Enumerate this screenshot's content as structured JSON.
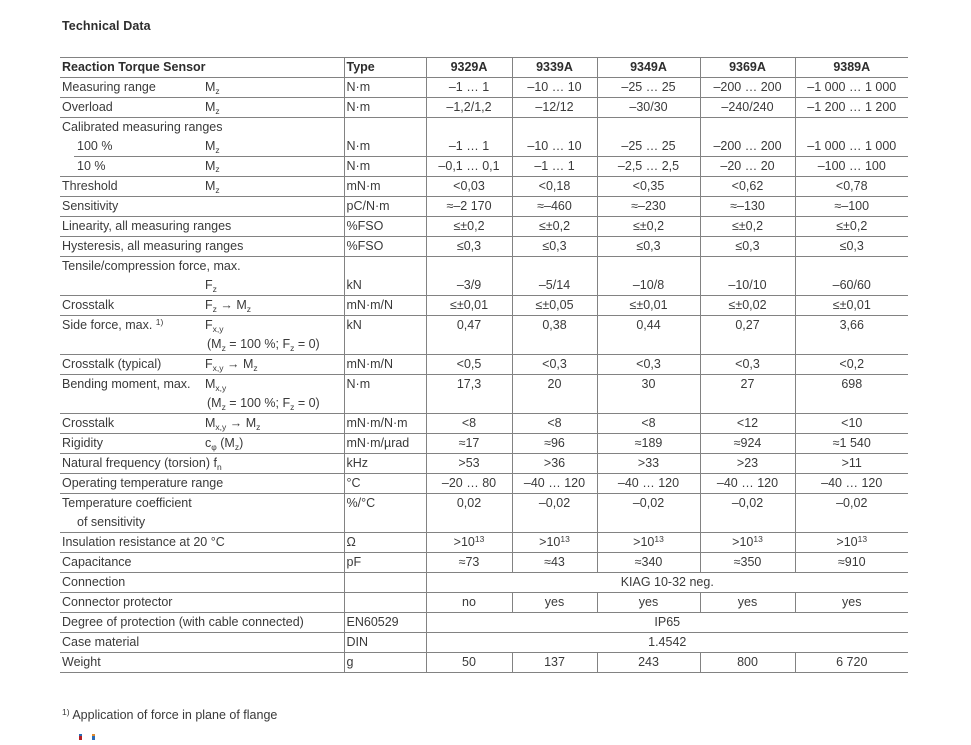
{
  "page": {
    "title": "Technical Data",
    "footnote": "^{1)} Application of force in plane of flange"
  },
  "colors": {
    "text": "#3a3a3a",
    "table_border": "#828282",
    "logo_fragment_red": "#b32025",
    "logo_fragment_blue": "#2b6bb3"
  },
  "table": {
    "header": {
      "label": "Reaction Torque Sensor",
      "type": "Type",
      "models": [
        "9329A",
        "9339A",
        "9349A",
        "9369A",
        "9389A"
      ]
    },
    "rows": [
      {
        "label": "Measuring range",
        "symbol": "M_{z}",
        "type": "N·m",
        "values": [
          "–1 … 1",
          "–10 … 10",
          "–25 … 25",
          "–200 … 200",
          "–1 000 … 1 000"
        ]
      },
      {
        "label": "Overload",
        "symbol": "M_{z}",
        "type": "N·m",
        "values": [
          "–1,2/1,2",
          "–12/12",
          "–30/30",
          "–240/240",
          "–1 200 … 1 200"
        ]
      },
      {
        "label": "Calibrated measuring ranges",
        "group": true
      },
      {
        "label": "100 %",
        "indent": true,
        "symbol": "M_{z}",
        "type": "N·m",
        "values": [
          "–1 … 1",
          "–10 … 10",
          "–25 … 25",
          "–200 … 200",
          "–1 000 … 1 000"
        ],
        "partialDivider": true
      },
      {
        "label": "10 %",
        "indent": true,
        "symbol": "M_{z}",
        "type": "N·m",
        "values": [
          "–0,1 … 0,1",
          "–1 … 1",
          "–2,5 … 2,5",
          "–20 … 20",
          "–100 … 100"
        ]
      },
      {
        "label": "Threshold",
        "symbol": "M_{z}",
        "type": "mN·m",
        "values": [
          "<0,03",
          "<0,18",
          "<0,35",
          "<0,62",
          "<0,78"
        ]
      },
      {
        "label": "Sensitivity",
        "type": "pC/N·m",
        "values": [
          "≈–2 170",
          "≈–460",
          "≈–230",
          "≈–130",
          "≈–100"
        ]
      },
      {
        "label": "Linearity, all measuring ranges",
        "type": "%FSO",
        "values": [
          "≤±0,2",
          "≤±0,2",
          "≤±0,2",
          "≤±0,2",
          "≤±0,2"
        ]
      },
      {
        "label": "Hysteresis, all measuring ranges",
        "type": "%FSO",
        "values": [
          "≤0,3",
          "≤0,3",
          "≤0,3",
          "≤0,3",
          "≤0,3"
        ]
      },
      {
        "label": "Tensile/compression force, max.",
        "group": true
      },
      {
        "label": "",
        "symbol": "F_{z}",
        "type": "kN",
        "values": [
          "–3/9",
          "–5/14",
          "–10/8",
          "–10/10",
          "–60/60"
        ]
      },
      {
        "label": "Crosstalk",
        "symbol": "F_{z} → M_{z}",
        "type": "mN·m/N",
        "values": [
          "≤±0,01",
          "≤±0,05",
          "≤±0,01",
          "≤±0,02",
          "≤±0,01"
        ]
      },
      {
        "label": "Side force, max. ^{1)}",
        "symbol": "F_{x,y}",
        "symbol2": "(M_{z} = 100 %; F_{z} = 0)",
        "type": "kN",
        "values": [
          "0,47",
          "0,38",
          "0,44",
          "0,27",
          "3,66"
        ]
      },
      {
        "label": "Crosstalk (typical)",
        "symbol": "F_{x,y} → M_{z}",
        "type": "mN·m/N",
        "values": [
          "<0,5",
          "<0,3",
          "<0,3",
          "<0,3",
          "<0,2"
        ]
      },
      {
        "label": "Bending moment, max.",
        "symbol": "M_{x,y}",
        "symbol2": "(M_{z} = 100 %; F_{z} = 0)",
        "type": "N·m",
        "values": [
          "17,3",
          "20",
          "30",
          "27",
          "698"
        ]
      },
      {
        "label": "Crosstalk",
        "symbol": "M_{x,y} → M_{z}",
        "type": "mN·m/N·m",
        "values": [
          "<8",
          "<8",
          "<8",
          "<12",
          "<10"
        ]
      },
      {
        "label": "Rigidity",
        "symbol": "c_{φ} (M_{z})",
        "type": "mN·m/µrad",
        "values": [
          "≈17",
          "≈96",
          "≈189",
          "≈924",
          "≈1 540"
        ]
      },
      {
        "label": "Natural frequency (torsion) f_{n}",
        "type": "kHz",
        "values": [
          ">53",
          ">36",
          ">33",
          ">23",
          ">11"
        ]
      },
      {
        "label": "Operating temperature range",
        "type": "°C",
        "values": [
          "–20 … 80",
          "–40 … 120",
          "–40 … 120",
          "–40 … 120",
          "–40 … 120"
        ]
      },
      {
        "label": "Temperature coefficient",
        "label2": "of sensitivity",
        "type": "%/°C",
        "values": [
          "0,02",
          "–0,02",
          "–0,02",
          "–0,02",
          "–0,02"
        ]
      },
      {
        "label": "Insulation resistance at 20 °C",
        "type": "Ω",
        "values": [
          ">10^{13}",
          ">10^{13}",
          ">10^{13}",
          ">10^{13}",
          ">10^{13}"
        ]
      },
      {
        "label": "Capacitance",
        "type": "pF",
        "values": [
          "≈73",
          "≈43",
          "≈340",
          "≈350",
          "≈910"
        ]
      },
      {
        "label": "Connection",
        "span": "KIAG 10-32 neg."
      },
      {
        "label": "Connector protector",
        "values": [
          "no",
          "yes",
          "yes",
          "yes",
          "yes"
        ]
      },
      {
        "label": "Degree of protection (with cable connected)",
        "type": "EN60529",
        "span": "IP65"
      },
      {
        "label": "Case material",
        "type": "DIN",
        "span": "1.4542"
      },
      {
        "label": "Weight",
        "type": "g",
        "values": [
          "50",
          "137",
          "243",
          "800",
          "6 720"
        ]
      }
    ]
  }
}
